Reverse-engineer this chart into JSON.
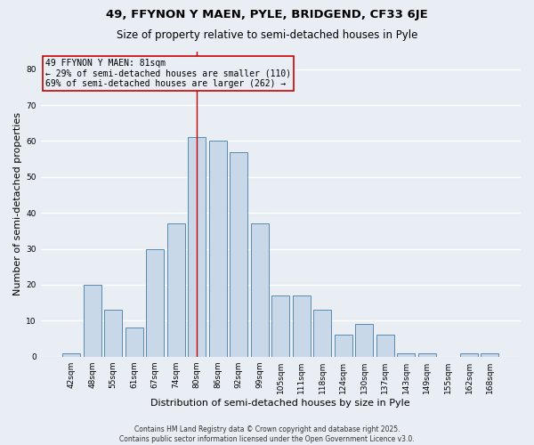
{
  "title": "49, FFYNON Y MAEN, PYLE, BRIDGEND, CF33 6JE",
  "subtitle": "Size of property relative to semi-detached houses in Pyle",
  "xlabel": "Distribution of semi-detached houses by size in Pyle",
  "ylabel": "Number of semi-detached properties",
  "categories": [
    "42sqm",
    "48sqm",
    "55sqm",
    "61sqm",
    "67sqm",
    "74sqm",
    "80sqm",
    "86sqm",
    "92sqm",
    "99sqm",
    "105sqm",
    "111sqm",
    "118sqm",
    "124sqm",
    "130sqm",
    "137sqm",
    "143sqm",
    "149sqm",
    "155sqm",
    "162sqm",
    "168sqm"
  ],
  "values": [
    1,
    20,
    13,
    8,
    30,
    37,
    61,
    60,
    57,
    37,
    17,
    17,
    13,
    6,
    9,
    6,
    1,
    1,
    0,
    1,
    1
  ],
  "bar_color": "#c8d8e8",
  "bar_edge_color": "#5a8ab0",
  "background_color": "#e8eef4",
  "grid_color": "#ffffff",
  "annotation_line1": "49 FFYNON Y MAEN: 81sqm",
  "annotation_line2": "← 29% of semi-detached houses are smaller (110)",
  "annotation_line3": "69% of semi-detached houses are larger (262) →",
  "vline_x": 6,
  "vline_color": "#cc0000",
  "annotation_box_color": "#cc0000",
  "ylim": [
    0,
    85
  ],
  "yticks": [
    0,
    10,
    20,
    30,
    40,
    50,
    60,
    70,
    80
  ],
  "footer": "Contains HM Land Registry data © Crown copyright and database right 2025.\nContains public sector information licensed under the Open Government Licence v3.0.",
  "title_fontsize": 9.5,
  "subtitle_fontsize": 8.5,
  "xlabel_fontsize": 8,
  "ylabel_fontsize": 8,
  "tick_fontsize": 6.5,
  "annotation_fontsize": 7,
  "footer_fontsize": 5.5
}
